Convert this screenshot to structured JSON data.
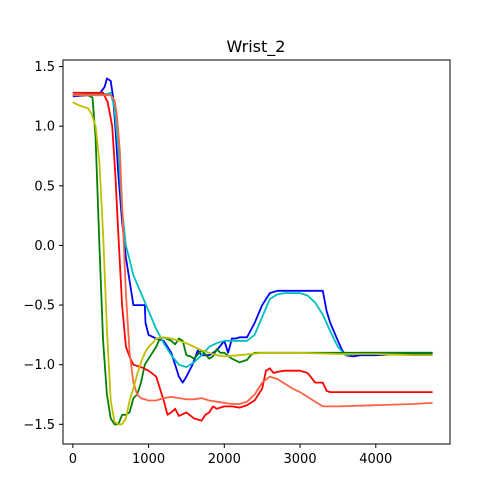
{
  "chart_data": {
    "type": "line",
    "title": "Wrist_2",
    "xlabel": "",
    "ylabel": "",
    "xlim": [
      -130,
      4980
    ],
    "ylim": [
      -1.665,
      1.555
    ],
    "xticks": [
      0,
      1000,
      2000,
      3000,
      4000
    ],
    "xtick_labels": [
      "0",
      "1000",
      "2000",
      "3000",
      "4000"
    ],
    "yticks": [
      1.5,
      1.0,
      0.5,
      0.0,
      -0.5,
      -1.0,
      -1.5
    ],
    "ytick_labels": [
      "1.5",
      "1.0",
      "0.5",
      "0.0",
      "−0.5",
      "−1.0",
      "−1.5"
    ],
    "grid": false,
    "series": [
      {
        "color": "#0000ff",
        "x": [
          0,
          200,
          350,
          420,
          450,
          500,
          530,
          560,
          600,
          650,
          700,
          800,
          900,
          950,
          960,
          1000,
          1100,
          1200,
          1300,
          1400,
          1450,
          1500,
          1580,
          1650,
          1700,
          1800,
          1900,
          2000,
          2050,
          2100,
          2150,
          2200,
          2300,
          2400,
          2500,
          2600,
          2700,
          3000,
          3300,
          3350,
          3400,
          3500,
          3550,
          3600,
          3700,
          3800,
          4000,
          4300,
          4750
        ],
        "y": [
          1.25,
          1.26,
          1.27,
          1.33,
          1.4,
          1.38,
          1.25,
          1.0,
          0.6,
          0.2,
          -0.1,
          -0.5,
          -0.5,
          -0.5,
          -0.65,
          -0.75,
          -0.78,
          -0.8,
          -0.9,
          -1.1,
          -1.15,
          -1.1,
          -1.0,
          -0.88,
          -0.92,
          -0.92,
          -0.88,
          -0.8,
          -0.9,
          -0.78,
          -0.78,
          -0.77,
          -0.77,
          -0.65,
          -0.5,
          -0.4,
          -0.38,
          -0.38,
          -0.38,
          -0.55,
          -0.65,
          -0.8,
          -0.87,
          -0.92,
          -0.93,
          -0.92,
          -0.92,
          -0.91,
          -0.91
        ]
      },
      {
        "color": "#00bfbf",
        "x": [
          0,
          300,
          400,
          450,
          500,
          550,
          600,
          650,
          700,
          750,
          800,
          900,
          1000,
          1100,
          1200,
          1300,
          1400,
          1500,
          1600,
          1700,
          1800,
          1900,
          2000,
          2100,
          2200,
          2300,
          2400,
          2500,
          2600,
          2700,
          2800,
          3000,
          3100,
          3200,
          3300,
          3400,
          3500,
          3600,
          3700,
          3800,
          4000,
          4300,
          4750
        ],
        "y": [
          1.26,
          1.27,
          1.27,
          1.27,
          1.28,
          1.15,
          0.8,
          0.3,
          0.0,
          -0.12,
          -0.25,
          -0.4,
          -0.55,
          -0.7,
          -0.82,
          -0.92,
          -1.0,
          -1.02,
          -0.98,
          -0.92,
          -0.85,
          -0.82,
          -0.8,
          -0.8,
          -0.8,
          -0.8,
          -0.75,
          -0.6,
          -0.45,
          -0.41,
          -0.4,
          -0.4,
          -0.42,
          -0.48,
          -0.58,
          -0.72,
          -0.85,
          -0.92,
          -0.91,
          -0.9,
          -0.9,
          -0.9,
          -0.9
        ]
      },
      {
        "color": "#008000",
        "x": [
          0,
          200,
          260,
          300,
          350,
          400,
          450,
          500,
          550,
          600,
          650,
          700,
          750,
          800,
          850,
          900,
          950,
          1000,
          1100,
          1150,
          1200,
          1300,
          1350,
          1400,
          1450,
          1500,
          1550,
          1600,
          1700,
          1800,
          1850,
          1900,
          1950,
          2000,
          2100,
          2200,
          2300,
          2350,
          2400,
          2500,
          3000,
          3500,
          4000,
          4750
        ],
        "y": [
          1.26,
          1.26,
          1.24,
          0.9,
          0.0,
          -0.8,
          -1.25,
          -1.45,
          -1.5,
          -1.5,
          -1.42,
          -1.42,
          -1.4,
          -1.28,
          -1.25,
          -1.15,
          -1.0,
          -0.95,
          -0.85,
          -0.78,
          -0.77,
          -0.8,
          -0.83,
          -0.78,
          -0.8,
          -0.92,
          -0.93,
          -0.95,
          -0.88,
          -0.95,
          -0.93,
          -0.87,
          -0.9,
          -0.9,
          -0.95,
          -0.98,
          -0.96,
          -0.92,
          -0.9,
          -0.9,
          -0.9,
          -0.9,
          -0.9,
          -0.9
        ]
      },
      {
        "color": "#ff0000",
        "x": [
          0,
          300,
          400,
          460,
          520,
          560,
          600,
          650,
          700,
          760,
          800,
          900,
          1000,
          1100,
          1200,
          1250,
          1300,
          1350,
          1400,
          1500,
          1600,
          1700,
          1750,
          1800,
          1850,
          1900,
          2000,
          2100,
          2200,
          2300,
          2400,
          2500,
          2550,
          2600,
          2650,
          2700,
          2800,
          3000,
          3100,
          3200,
          3300,
          3350,
          3400,
          3500,
          4000,
          4750
        ],
        "y": [
          1.28,
          1.28,
          1.28,
          1.2,
          1.0,
          0.6,
          0.1,
          -0.5,
          -0.85,
          -0.95,
          -1.0,
          -1.02,
          -1.05,
          -1.1,
          -1.3,
          -1.42,
          -1.4,
          -1.37,
          -1.43,
          -1.4,
          -1.45,
          -1.47,
          -1.42,
          -1.4,
          -1.35,
          -1.37,
          -1.35,
          -1.35,
          -1.36,
          -1.34,
          -1.3,
          -1.2,
          -1.05,
          -1.03,
          -1.07,
          -1.06,
          -1.05,
          -1.05,
          -1.07,
          -1.15,
          -1.15,
          -1.22,
          -1.23,
          -1.23,
          -1.23,
          -1.23
        ]
      },
      {
        "color": "#ff6347",
        "x": [
          0,
          400,
          450,
          500,
          550,
          580,
          620,
          660,
          700,
          750,
          800,
          850,
          900,
          1000,
          1100,
          1200,
          1300,
          1400,
          1500,
          1600,
          1700,
          1800,
          1900,
          2000,
          2100,
          2200,
          2300,
          2400,
          2500,
          2600,
          2700,
          2800,
          2900,
          3000,
          3100,
          3200,
          3300,
          3500,
          4000,
          4500,
          4750
        ],
        "y": [
          1.26,
          1.26,
          1.26,
          1.26,
          1.22,
          1.1,
          0.8,
          0.2,
          -0.4,
          -0.9,
          -1.15,
          -1.25,
          -1.28,
          -1.3,
          -1.3,
          -1.28,
          -1.27,
          -1.28,
          -1.29,
          -1.29,
          -1.28,
          -1.3,
          -1.31,
          -1.32,
          -1.33,
          -1.33,
          -1.31,
          -1.25,
          -1.15,
          -1.1,
          -1.12,
          -1.16,
          -1.2,
          -1.23,
          -1.27,
          -1.31,
          -1.35,
          -1.35,
          -1.34,
          -1.33,
          -1.32
        ]
      },
      {
        "color": "#bfbf00",
        "x": [
          0,
          100,
          200,
          250,
          300,
          350,
          400,
          450,
          500,
          550,
          600,
          650,
          700,
          750,
          800,
          850,
          900,
          950,
          1000,
          1050,
          1100,
          1200,
          1300,
          1400,
          1500,
          1600,
          1700,
          1800,
          1900,
          2000,
          2200,
          2500,
          2800,
          3000,
          3500,
          4000,
          4500,
          4750
        ],
        "y": [
          1.2,
          1.17,
          1.15,
          1.1,
          1.0,
          0.7,
          0.1,
          -0.7,
          -1.3,
          -1.48,
          -1.5,
          -1.5,
          -1.45,
          -1.3,
          -1.2,
          -1.08,
          -0.98,
          -0.9,
          -0.85,
          -0.82,
          -0.78,
          -0.77,
          -0.78,
          -0.8,
          -0.82,
          -0.85,
          -0.88,
          -0.9,
          -0.92,
          -0.93,
          -0.92,
          -0.9,
          -0.9,
          -0.9,
          -0.91,
          -0.91,
          -0.92,
          -0.92
        ]
      }
    ]
  }
}
